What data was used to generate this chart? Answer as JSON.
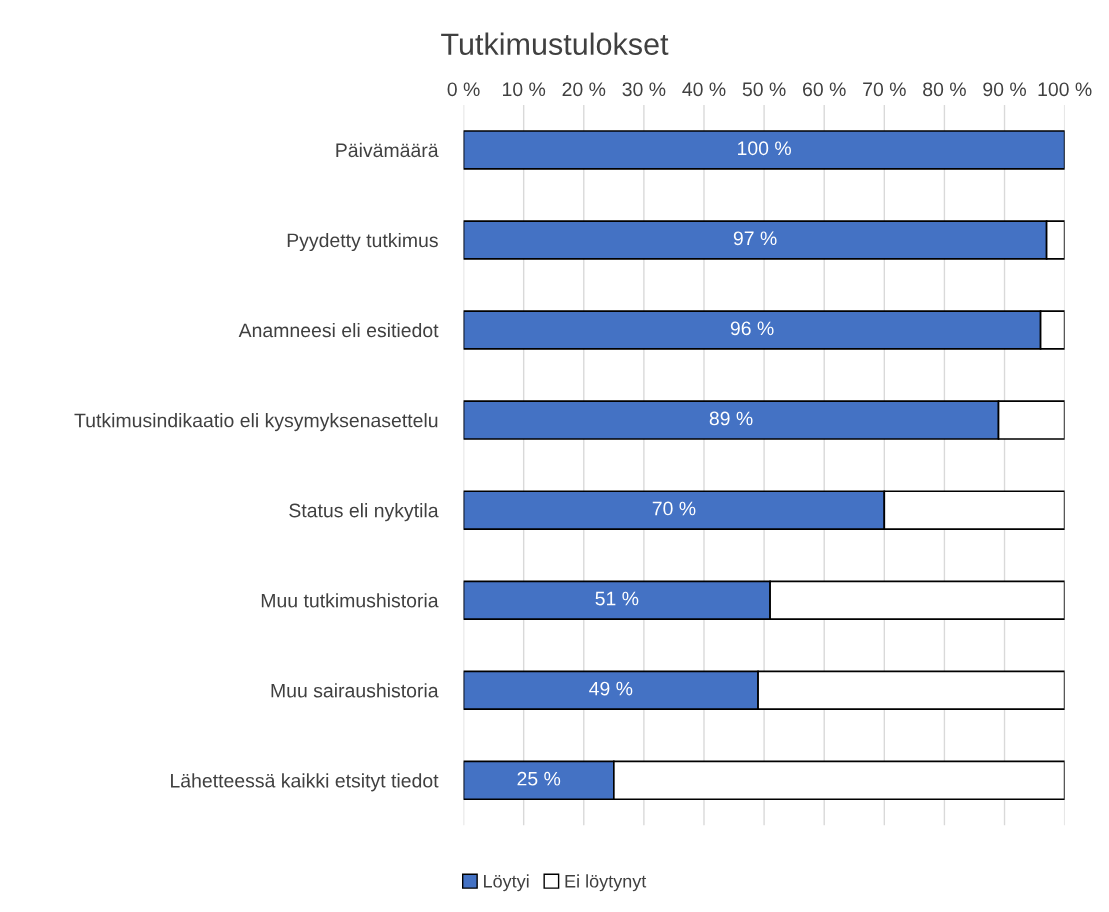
{
  "chart_data": {
    "type": "bar",
    "orientation": "horizontal",
    "stacked": true,
    "title": "Tutkimustulokset",
    "categories": [
      "Päivämäärä",
      "Pyydetty tutkimus",
      "Anamneesi eli esitiedot",
      "Tutkimusindikaatio eli kysymyksenasettelu",
      "Status eli nykytila",
      "Muu tutkimushistoria",
      "Muu sairaushistoria",
      "Lähetteessä kaikki etsityt tiedot"
    ],
    "series": [
      {
        "name": "Löytyi",
        "color": "#4472c4",
        "values": [
          100,
          97,
          96,
          89,
          70,
          51,
          49,
          25
        ],
        "value_labels": [
          "100 %",
          "97 %",
          "96 %",
          "89 %",
          "70 %",
          "51 %",
          "49 %",
          "25 %"
        ]
      },
      {
        "name": "Ei löytynyt",
        "color": "#ffffff",
        "values": [
          0,
          3,
          4,
          11,
          30,
          49,
          51,
          75
        ]
      }
    ],
    "xlim": [
      0,
      100
    ],
    "xticks": [
      {
        "value": 0,
        "label": "0 %"
      },
      {
        "value": 10,
        "label": "10 %"
      },
      {
        "value": 20,
        "label": "20 %"
      },
      {
        "value": 30,
        "label": "30 %"
      },
      {
        "value": 40,
        "label": "40 %"
      },
      {
        "value": 50,
        "label": "50 %"
      },
      {
        "value": 60,
        "label": "60 %"
      },
      {
        "value": 70,
        "label": "70 %"
      },
      {
        "value": 80,
        "label": "80 %"
      },
      {
        "value": 90,
        "label": "90 %"
      },
      {
        "value": 100,
        "label": "100 %"
      }
    ],
    "grid": "x",
    "legend": "bottom"
  }
}
